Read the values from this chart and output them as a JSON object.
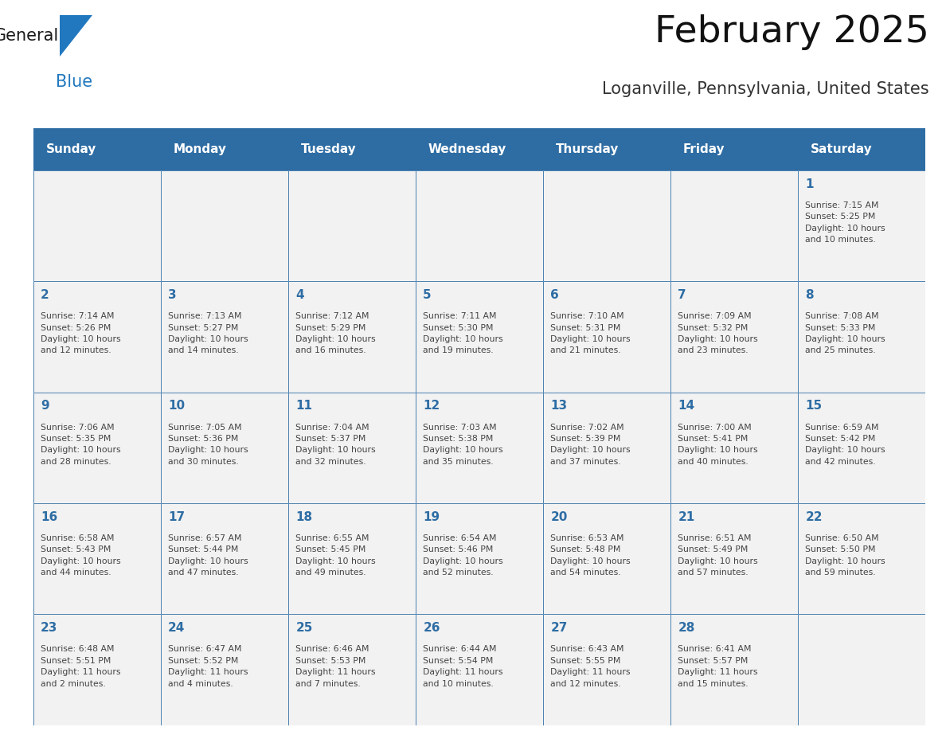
{
  "title": "February 2025",
  "subtitle": "Loganville, Pennsylvania, United States",
  "days_of_week": [
    "Sunday",
    "Monday",
    "Tuesday",
    "Wednesday",
    "Thursday",
    "Friday",
    "Saturday"
  ],
  "header_bg": "#2E6DA4",
  "header_text": "#FFFFFF",
  "cell_bg": "#F2F2F2",
  "border_color": "#2E6DA4",
  "day_number_color": "#2E6DA4",
  "text_color": "#444444",
  "logo_general_color": "#1a1a1a",
  "logo_blue_color": "#2178BF",
  "weeks": [
    [
      {
        "day": null,
        "info": null
      },
      {
        "day": null,
        "info": null
      },
      {
        "day": null,
        "info": null
      },
      {
        "day": null,
        "info": null
      },
      {
        "day": null,
        "info": null
      },
      {
        "day": null,
        "info": null
      },
      {
        "day": 1,
        "info": "Sunrise: 7:15 AM\nSunset: 5:25 PM\nDaylight: 10 hours\nand 10 minutes."
      }
    ],
    [
      {
        "day": 2,
        "info": "Sunrise: 7:14 AM\nSunset: 5:26 PM\nDaylight: 10 hours\nand 12 minutes."
      },
      {
        "day": 3,
        "info": "Sunrise: 7:13 AM\nSunset: 5:27 PM\nDaylight: 10 hours\nand 14 minutes."
      },
      {
        "day": 4,
        "info": "Sunrise: 7:12 AM\nSunset: 5:29 PM\nDaylight: 10 hours\nand 16 minutes."
      },
      {
        "day": 5,
        "info": "Sunrise: 7:11 AM\nSunset: 5:30 PM\nDaylight: 10 hours\nand 19 minutes."
      },
      {
        "day": 6,
        "info": "Sunrise: 7:10 AM\nSunset: 5:31 PM\nDaylight: 10 hours\nand 21 minutes."
      },
      {
        "day": 7,
        "info": "Sunrise: 7:09 AM\nSunset: 5:32 PM\nDaylight: 10 hours\nand 23 minutes."
      },
      {
        "day": 8,
        "info": "Sunrise: 7:08 AM\nSunset: 5:33 PM\nDaylight: 10 hours\nand 25 minutes."
      }
    ],
    [
      {
        "day": 9,
        "info": "Sunrise: 7:06 AM\nSunset: 5:35 PM\nDaylight: 10 hours\nand 28 minutes."
      },
      {
        "day": 10,
        "info": "Sunrise: 7:05 AM\nSunset: 5:36 PM\nDaylight: 10 hours\nand 30 minutes."
      },
      {
        "day": 11,
        "info": "Sunrise: 7:04 AM\nSunset: 5:37 PM\nDaylight: 10 hours\nand 32 minutes."
      },
      {
        "day": 12,
        "info": "Sunrise: 7:03 AM\nSunset: 5:38 PM\nDaylight: 10 hours\nand 35 minutes."
      },
      {
        "day": 13,
        "info": "Sunrise: 7:02 AM\nSunset: 5:39 PM\nDaylight: 10 hours\nand 37 minutes."
      },
      {
        "day": 14,
        "info": "Sunrise: 7:00 AM\nSunset: 5:41 PM\nDaylight: 10 hours\nand 40 minutes."
      },
      {
        "day": 15,
        "info": "Sunrise: 6:59 AM\nSunset: 5:42 PM\nDaylight: 10 hours\nand 42 minutes."
      }
    ],
    [
      {
        "day": 16,
        "info": "Sunrise: 6:58 AM\nSunset: 5:43 PM\nDaylight: 10 hours\nand 44 minutes."
      },
      {
        "day": 17,
        "info": "Sunrise: 6:57 AM\nSunset: 5:44 PM\nDaylight: 10 hours\nand 47 minutes."
      },
      {
        "day": 18,
        "info": "Sunrise: 6:55 AM\nSunset: 5:45 PM\nDaylight: 10 hours\nand 49 minutes."
      },
      {
        "day": 19,
        "info": "Sunrise: 6:54 AM\nSunset: 5:46 PM\nDaylight: 10 hours\nand 52 minutes."
      },
      {
        "day": 20,
        "info": "Sunrise: 6:53 AM\nSunset: 5:48 PM\nDaylight: 10 hours\nand 54 minutes."
      },
      {
        "day": 21,
        "info": "Sunrise: 6:51 AM\nSunset: 5:49 PM\nDaylight: 10 hours\nand 57 minutes."
      },
      {
        "day": 22,
        "info": "Sunrise: 6:50 AM\nSunset: 5:50 PM\nDaylight: 10 hours\nand 59 minutes."
      }
    ],
    [
      {
        "day": 23,
        "info": "Sunrise: 6:48 AM\nSunset: 5:51 PM\nDaylight: 11 hours\nand 2 minutes."
      },
      {
        "day": 24,
        "info": "Sunrise: 6:47 AM\nSunset: 5:52 PM\nDaylight: 11 hours\nand 4 minutes."
      },
      {
        "day": 25,
        "info": "Sunrise: 6:46 AM\nSunset: 5:53 PM\nDaylight: 11 hours\nand 7 minutes."
      },
      {
        "day": 26,
        "info": "Sunrise: 6:44 AM\nSunset: 5:54 PM\nDaylight: 11 hours\nand 10 minutes."
      },
      {
        "day": 27,
        "info": "Sunrise: 6:43 AM\nSunset: 5:55 PM\nDaylight: 11 hours\nand 12 minutes."
      },
      {
        "day": 28,
        "info": "Sunrise: 6:41 AM\nSunset: 5:57 PM\nDaylight: 11 hours\nand 15 minutes."
      },
      {
        "day": null,
        "info": null
      }
    ]
  ]
}
